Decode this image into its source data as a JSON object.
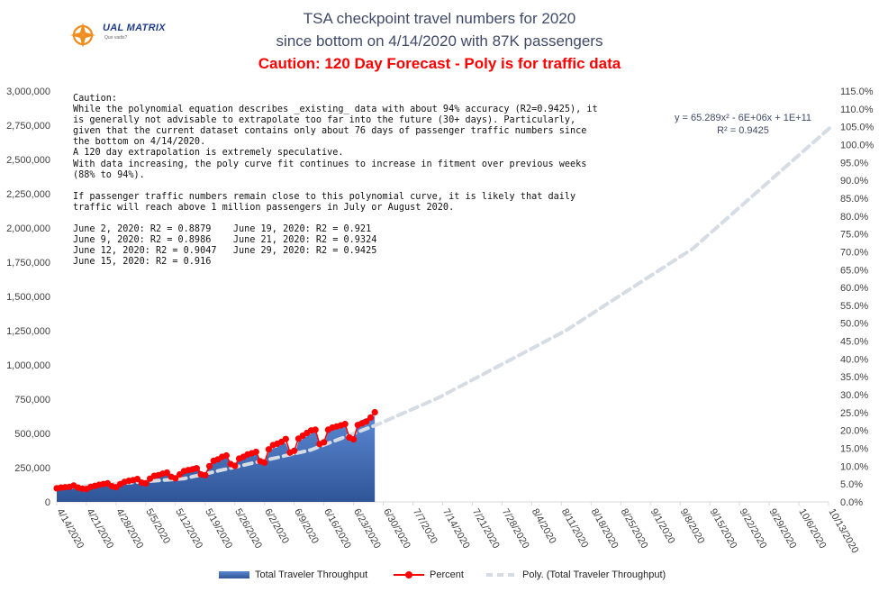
{
  "logo": {
    "name": "UAL MATRIX",
    "tagline": "Quo vadis?"
  },
  "title": {
    "line1": "TSA checkpoint travel numbers for 2020",
    "line2": "since bottom on 4/14/2020 with 87K passengers",
    "line3": "Caution: 120 Day Forecast - Poly is for traffic data"
  },
  "note": {
    "text": "Caution:\nWhile the polynomial equation describes _existing_ data with about 94% accuracy (R2=0.9425), it\nis generally not advisable to extrapolate too far into the future (30+ days). Particularly,\ngiven that the current dataset contains only about 76 days of passenger traffic numbers since\nthe bottom on 4/14/2020.\nA 120 day extrapolation is extremely speculative.\nWith data increasing, the poly curve fit continues to increase in fitment over previous weeks\n(88% to 94%).\n\nIf passenger traffic numbers remain close to this polynomial curve, it is likely that daily\ntraffic will reach above 1 million passengers in July or August 2020.\n\nJune 2, 2020: R2 = 0.8879    June 19, 2020: R2 = 0.921\nJune 9, 2020: R2 = 0.8986    June 21, 2020: R2 = 0.9324\nJune 12, 2020: R2 = 0.9047   June 29, 2020: R2 = 0.9425\nJune 15, 2020: R2 = 0.916"
  },
  "trendline": {
    "equation": "y = 65.289x² - 6E+06x + 1E+11",
    "r2": "R² = 0.9425"
  },
  "legend": {
    "area": "Total Traveler Throughput",
    "percent": "Percent",
    "poly": "Poly. (Total Traveler Throughput)"
  },
  "colors": {
    "area": "#4472c4",
    "percent": "#ff0000",
    "poly": "#d6dce4",
    "title": "#404a68",
    "caution": "#ff0000"
  },
  "chart_data": {
    "type": "area",
    "x_start": "2020-04-14",
    "x_ticks": [
      "4/14/2020",
      "4/21/2020",
      "4/28/2020",
      "5/5/2020",
      "5/12/2020",
      "5/19/2020",
      "5/26/2020",
      "6/2/2020",
      "6/9/2020",
      "6/16/2020",
      "6/23/2020",
      "6/30/2020",
      "7/7/2020",
      "7/14/2020",
      "7/21/2020",
      "7/28/2020",
      "8/4/2020",
      "8/11/2020",
      "8/18/2020",
      "8/25/2020",
      "9/1/2020",
      "9/8/2020",
      "9/15/2020",
      "9/22/2020",
      "9/29/2020",
      "10/6/2020",
      "10/13/2020"
    ],
    "y_left": {
      "min": 0,
      "max": 3000000,
      "step": 250000,
      "ticks": [
        "0",
        "250,000",
        "500,000",
        "750,000",
        "1,000,000",
        "1,250,000",
        "1,500,000",
        "1,750,000",
        "2,000,000",
        "2,250,000",
        "2,500,000",
        "2,750,000",
        "3,000,000"
      ]
    },
    "y_right": {
      "min": 0,
      "max": 115,
      "step": 5,
      "ticks": [
        "0.0%",
        "5.0%",
        "10.0%",
        "15.0%",
        "20.0%",
        "25.0%",
        "30.0%",
        "35.0%",
        "40.0%",
        "45.0%",
        "50.0%",
        "55.0%",
        "60.0%",
        "65.0%",
        "70.0%",
        "75.0%",
        "80.0%",
        "85.0%",
        "90.0%",
        "95.0%",
        "100.0%",
        "105.0%",
        "110.0%",
        "115.0%"
      ]
    },
    "series": [
      {
        "name": "Total Traveler Throughput",
        "type": "area",
        "axis": "left",
        "values": [
          87534,
          95085,
          110913,
          119629,
          128875,
          106385,
          97130,
          95771,
          112000,
          119854,
          124000,
          133000,
          140000,
          114000,
          101000,
          130000,
          150000,
          160000,
          170000,
          180000,
          150000,
          140000,
          170000,
          190000,
          200000,
          215000,
          230000,
          190000,
          180000,
          210000,
          240000,
          250000,
          260000,
          270000,
          220000,
          210000,
          260000,
          290000,
          300000,
          320000,
          330000,
          280000,
          260000,
          310000,
          330000,
          350000,
          360000,
          370000,
          300000,
          290000,
          360000,
          390000,
          400000,
          420000,
          430000,
          350000,
          340000,
          440000,
          460000,
          480000,
          500000,
          510000,
          420000,
          410000,
          520000,
          540000,
          550000,
          560000,
          570000,
          480000,
          470000,
          580000,
          600000,
          610000,
          620000,
          630000
        ],
        "dates_start": "2020-04-14"
      },
      {
        "name": "Percent",
        "type": "line",
        "axis": "right",
        "values": [
          3.8,
          4.0,
          4.1,
          4.2,
          4.6,
          4.0,
          3.7,
          3.6,
          4.2,
          4.5,
          4.8,
          5.0,
          5.2,
          4.4,
          4.1,
          5.0,
          5.6,
          5.9,
          6.1,
          6.4,
          5.4,
          5.2,
          6.5,
          7.3,
          7.5,
          7.9,
          8.2,
          7.0,
          6.6,
          7.7,
          8.6,
          8.9,
          9.1,
          9.4,
          7.7,
          7.5,
          10.0,
          11.5,
          11.9,
          12.6,
          13.0,
          10.6,
          10.1,
          12.1,
          12.6,
          13.3,
          13.6,
          14.0,
          11.4,
          11.0,
          14.7,
          15.9,
          16.3,
          16.8,
          17.6,
          13.8,
          14.3,
          17.7,
          18.5,
          19.3,
          20.0,
          20.2,
          16.2,
          16.7,
          20.2,
          20.8,
          21.1,
          21.4,
          21.8,
          18.0,
          17.5,
          21.5,
          22.0,
          22.5,
          23.6,
          25.1
        ]
      },
      {
        "name": "Poly. (Total Traveler Throughput)",
        "type": "trendline",
        "axis": "left",
        "x_days_range": [
          0,
          183
        ],
        "approx_values_at_days": {
          "0": 100000,
          "30": 170000,
          "60": 380000,
          "76": 570000,
          "90": 760000,
          "120": 1250000,
          "150": 1850000,
          "183": 2750000
        }
      }
    ],
    "title": "TSA checkpoint travel numbers for 2020",
    "legend_position": "bottom",
    "grid": false
  }
}
